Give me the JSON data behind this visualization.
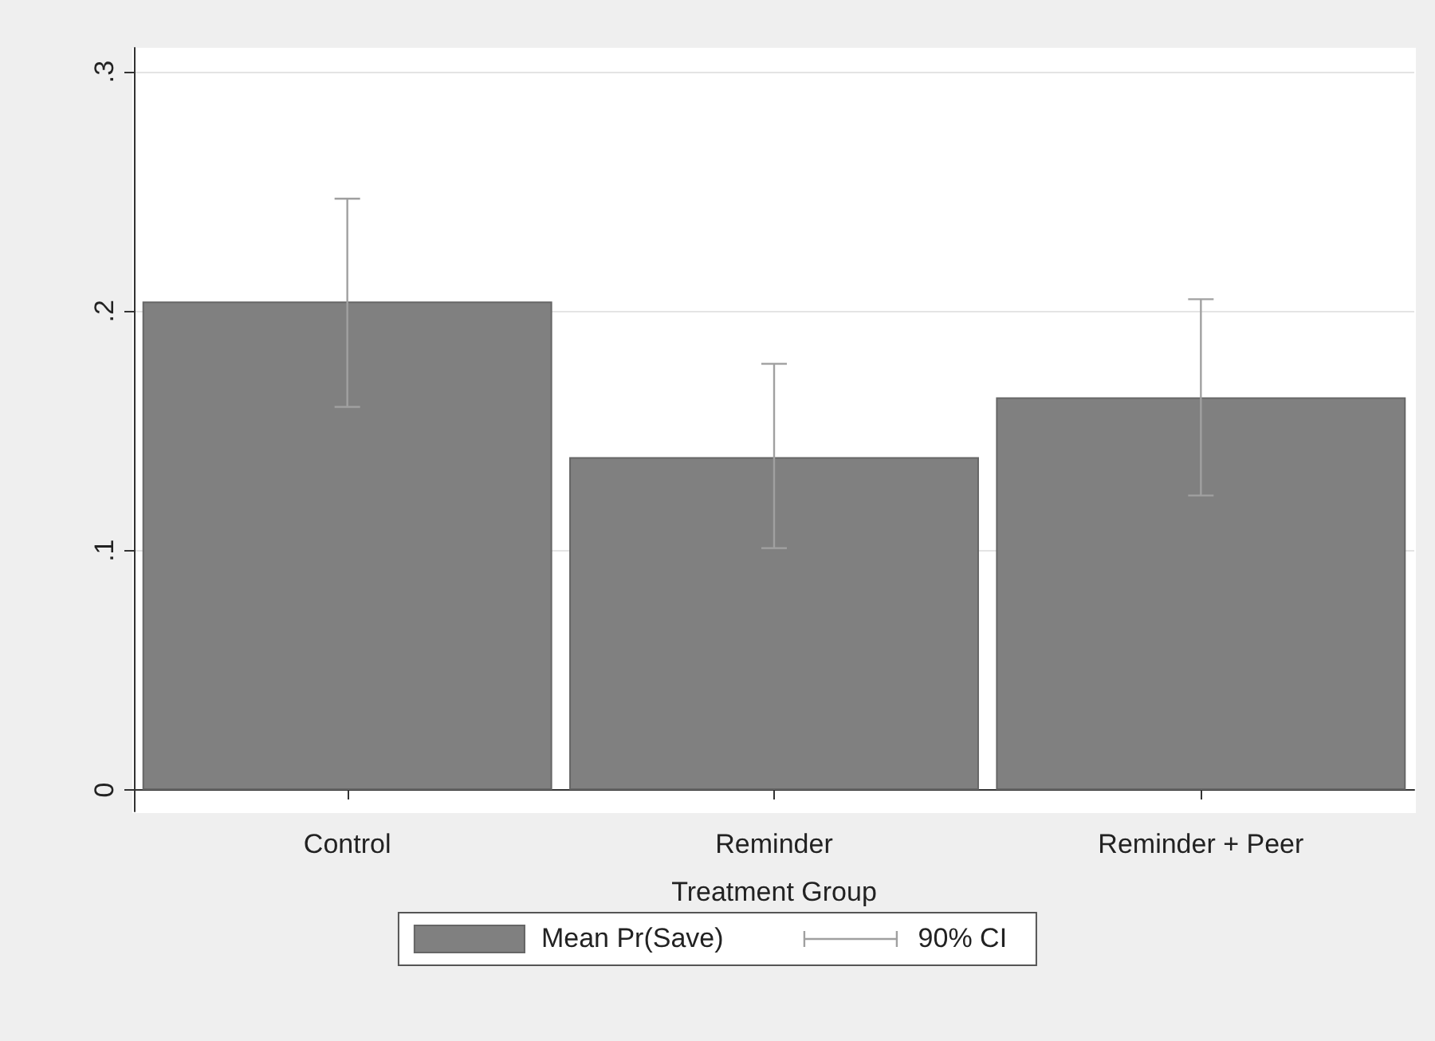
{
  "chart_data": {
    "type": "bar",
    "xlabel": "Treatment Group",
    "categories": [
      "Control",
      "Reminder",
      "Reminder + Peer"
    ],
    "series": [
      {
        "name": "Mean Pr(Save)",
        "color": "#808080",
        "values": [
          0.204,
          0.139,
          0.164
        ],
        "errors": [
          [
            0.16,
            0.247
          ],
          [
            0.101,
            0.178
          ],
          [
            0.123,
            0.205
          ]
        ]
      }
    ],
    "annotations": [
      "90% CI"
    ],
    "ylim": [
      -0.009,
      0.31
    ],
    "yticks": [
      {
        "value": 0,
        "label": "0"
      },
      {
        "value": 0.1,
        "label": ".1"
      },
      {
        "value": 0.2,
        "label": ".2"
      },
      {
        "value": 0.3,
        "label": ".3"
      }
    ],
    "grid": "y",
    "legend": "bottom"
  }
}
